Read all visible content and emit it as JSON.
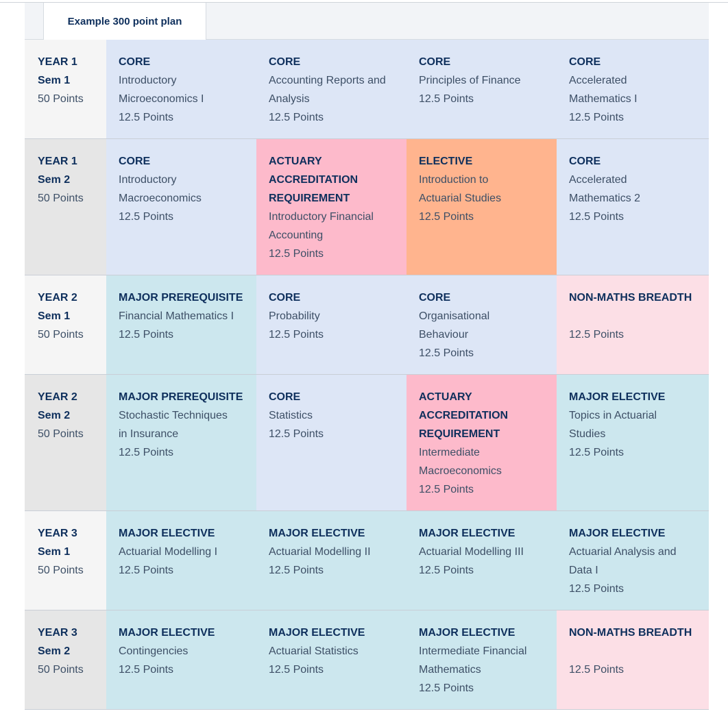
{
  "tab": {
    "label": "Example 300 point plan"
  },
  "colors": {
    "core": "#dde6f6",
    "accreditation": "#fdbacb",
    "elective": "#ffb48e",
    "major": "#cce7ee",
    "non_maths_breadth": "#fcdfe6",
    "text_dark": "#0e2f5c"
  },
  "rows": [
    {
      "year": "YEAR 1",
      "sem": "Sem 1",
      "points": "50 Points",
      "cells": [
        {
          "kind": "core",
          "category": "CORE",
          "subject": "Introductory\nMicroeconomics I",
          "points": "12.5 Points"
        },
        {
          "kind": "core",
          "category": "CORE",
          "subject": "Accounting Reports and\nAnalysis",
          "points": "12.5 Points"
        },
        {
          "kind": "core",
          "category": "CORE",
          "subject": "Principles of Finance",
          "points": "12.5 Points"
        },
        {
          "kind": "core",
          "category": "CORE",
          "subject": "Accelerated\nMathematics I",
          "points": "12.5 Points"
        }
      ]
    },
    {
      "year": "YEAR 1",
      "sem": "Sem 2",
      "points": "50 Points",
      "cells": [
        {
          "kind": "core",
          "category": "CORE",
          "subject": "Introductory\nMacroeconomics",
          "points": "12.5 Points"
        },
        {
          "kind": "accreditation",
          "category": "ACTUARY\nACCREDITATION\nREQUIREMENT",
          "subject": "Introductory Financial\nAccounting",
          "points": "12.5 Points"
        },
        {
          "kind": "elective",
          "category": "ELECTIVE",
          "subject": "Introduction to\nActuarial Studies",
          "points": "12.5 Points"
        },
        {
          "kind": "core",
          "category": "CORE",
          "subject": "Accelerated\nMathematics 2",
          "points": "12.5 Points"
        }
      ]
    },
    {
      "year": "YEAR 2",
      "sem": "Sem 1",
      "points": "50 Points",
      "cells": [
        {
          "kind": "major",
          "category": "MAJOR PREREQUISITE",
          "subject": "Financial Mathematics I",
          "points": "12.5 Points"
        },
        {
          "kind": "core",
          "category": "CORE",
          "subject": "Probability",
          "points": "12.5 Points"
        },
        {
          "kind": "core",
          "category": "CORE",
          "subject": "Organisational\nBehaviour",
          "points": "12.5 Points"
        },
        {
          "kind": "non_maths_breadth",
          "category": "NON-MATHS BREADTH",
          "subject": "",
          "points": "12.5 Points"
        }
      ]
    },
    {
      "year": "YEAR 2",
      "sem": "Sem 2",
      "points": "50 Points",
      "cells": [
        {
          "kind": "major",
          "category": "MAJOR PREREQUISITE",
          "subject": "Stochastic Techniques\nin Insurance",
          "points": "12.5 Points"
        },
        {
          "kind": "core",
          "category": "CORE",
          "subject": "Statistics",
          "points": "12.5 Points"
        },
        {
          "kind": "accreditation",
          "category": "ACTUARY\nACCREDITATION\nREQUIREMENT",
          "subject": "Intermediate\nMacroeconomics",
          "points": "12.5 Points"
        },
        {
          "kind": "major",
          "category": "MAJOR ELECTIVE",
          "subject": "Topics in Actuarial\nStudies",
          "points": "12.5 Points"
        }
      ]
    },
    {
      "year": "YEAR 3",
      "sem": "Sem 1",
      "points": "50 Points",
      "cells": [
        {
          "kind": "major",
          "category": "MAJOR ELECTIVE",
          "subject": "Actuarial Modelling I",
          "points": "12.5 Points"
        },
        {
          "kind": "major",
          "category": "MAJOR ELECTIVE",
          "subject": "Actuarial Modelling II",
          "points": "12.5 Points"
        },
        {
          "kind": "major",
          "category": "MAJOR ELECTIVE",
          "subject": "Actuarial Modelling III",
          "points": "12.5 Points"
        },
        {
          "kind": "major",
          "category": "MAJOR ELECTIVE",
          "subject": "Actuarial Analysis and\nData I",
          "points": "12.5 Points"
        }
      ]
    },
    {
      "year": "YEAR 3",
      "sem": "Sem 2",
      "points": "50 Points",
      "cells": [
        {
          "kind": "major",
          "category": "MAJOR ELECTIVE",
          "subject": "Contingencies",
          "points": "12.5 Points"
        },
        {
          "kind": "major",
          "category": "MAJOR ELECTIVE",
          "subject": "Actuarial Statistics",
          "points": "12.5 Points"
        },
        {
          "kind": "major",
          "category": "MAJOR ELECTIVE",
          "subject": "Intermediate Financial\nMathematics",
          "points": "12.5 Points"
        },
        {
          "kind": "non_maths_breadth",
          "category": "NON-MATHS BREADTH",
          "subject": "",
          "points": "12.5 Points"
        }
      ]
    }
  ]
}
